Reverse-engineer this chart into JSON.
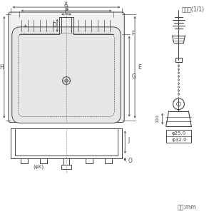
{
  "bg_color": "#ffffff",
  "lc": "#444444",
  "lc_dim": "#444444",
  "title_gomsen": "ゴム栓(1/1)",
  "label_unit": "単位:mm",
  "phi25": "φ25.0",
  "phi32": " φ32.0",
  "dim100": "100"
}
